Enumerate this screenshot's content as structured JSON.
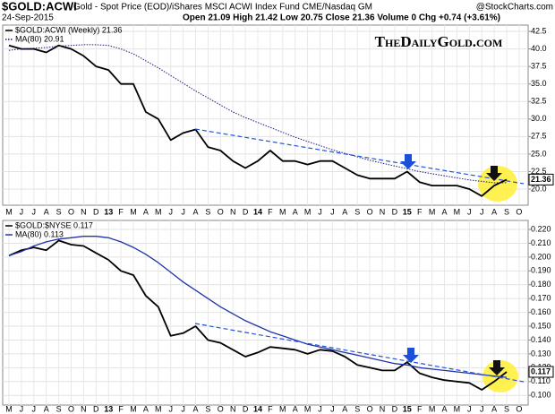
{
  "header": {
    "symbol": "$GOLD:ACWI",
    "description": "Gold - Spot Price (EOD)/iShares MSCI ACWI Index Fund CME/Nasdaq GM",
    "source": "@StockCharts.com",
    "date": "24-Sep-2015",
    "quote": "Open 21.09  High 21.42  Low 20.75  Close 21.36  Volume 0  Chg +0.74 (+3.61%)",
    "watermark": "TheDailyGold.com"
  },
  "chart_data": [
    {
      "type": "line",
      "close_label": "21.36",
      "categories": [
        "M",
        "J",
        "J",
        "A",
        "S",
        "O",
        "N",
        "D",
        "13",
        "F",
        "M",
        "A",
        "M",
        "J",
        "J",
        "A",
        "S",
        "O",
        "N",
        "D",
        "14",
        "F",
        "M",
        "A",
        "M",
        "J",
        "J",
        "A",
        "S",
        "O",
        "N",
        "D",
        "15",
        "F",
        "M",
        "A",
        "M",
        "J",
        "J",
        "A",
        "S",
        "O"
      ],
      "series": [
        {
          "name": "$GOLD:ACWI (Weekly) 21.36",
          "color": "#000000",
          "style": "solid",
          "values": [
            40.5,
            40,
            40,
            39.5,
            40.5,
            40,
            39,
            37.5,
            37,
            35,
            35,
            31,
            30,
            27,
            28,
            28.5,
            26,
            25.5,
            24,
            23,
            24,
            25.5,
            24,
            24,
            23.5,
            24,
            24,
            23,
            22,
            21.5,
            21.5,
            21.5,
            22.5,
            21,
            20.5,
            20.5,
            20.5,
            20,
            19,
            20.5,
            21.36,
            null
          ]
        },
        {
          "name": "MA(80) 20.91",
          "color": "#1a1a80",
          "style": "dotted",
          "values": [
            39.8,
            40,
            40.1,
            40.2,
            40.4,
            40.5,
            40.6,
            40.6,
            40.5,
            40,
            39.3,
            38.3,
            37.3,
            36.2,
            35.1,
            34,
            33,
            32,
            31,
            30.2,
            29.5,
            28.8,
            28.1,
            27.4,
            26.8,
            26.2,
            25.6,
            25.1,
            24.6,
            24.1,
            23.7,
            23.3,
            22.9,
            22.5,
            22.2,
            21.9,
            21.6,
            21.3,
            21.1,
            20.9,
            20.91,
            null
          ]
        }
      ],
      "ylim": [
        17.7,
        43.4
      ],
      "yticks": [
        {
          "value": 20,
          "label": "20.0"
        },
        22.5,
        {
          "value": 25,
          "label": "25.0"
        },
        27.5,
        {
          "value": 30,
          "label": "30.0"
        },
        32.5,
        {
          "value": 35,
          "label": "35.0"
        },
        37.5,
        {
          "value": 40,
          "label": "40.0"
        },
        42.5
      ],
      "grid": true
    },
    {
      "type": "line",
      "close_label": "0.117",
      "categories": [
        "M",
        "J",
        "J",
        "A",
        "S",
        "O",
        "N",
        "D",
        "13",
        "F",
        "M",
        "A",
        "M",
        "J",
        "J",
        "A",
        "S",
        "O",
        "N",
        "D",
        "14",
        "F",
        "M",
        "A",
        "M",
        "J",
        "J",
        "A",
        "S",
        "O",
        "N",
        "D",
        "15",
        "F",
        "M",
        "A",
        "M",
        "J",
        "J",
        "A",
        "S",
        "O"
      ],
      "series": [
        {
          "name": "$GOLD:$NYSE 0.117",
          "color": "#000000",
          "style": "solid",
          "values": [
            0.201,
            0.205,
            0.207,
            0.205,
            0.212,
            0.209,
            0.208,
            0.203,
            0.198,
            0.19,
            0.187,
            0.172,
            0.164,
            0.143,
            0.145,
            0.15,
            0.14,
            0.138,
            0.133,
            0.128,
            0.131,
            0.135,
            0.134,
            0.133,
            0.13,
            0.133,
            0.132,
            0.128,
            0.122,
            0.12,
            0.118,
            0.118,
            0.124,
            0.116,
            0.113,
            0.111,
            0.11,
            0.109,
            0.104,
            0.11,
            0.117,
            null
          ]
        },
        {
          "name": "MA(80) 0.113",
          "color": "#2233aa",
          "style": "solid",
          "values": [
            0.201,
            0.204,
            0.208,
            0.211,
            0.213,
            0.214,
            0.215,
            0.215,
            0.214,
            0.211,
            0.207,
            0.202,
            0.196,
            0.189,
            0.182,
            0.176,
            0.17,
            0.164,
            0.159,
            0.154,
            0.15,
            0.146,
            0.143,
            0.14,
            0.137,
            0.135,
            0.133,
            0.131,
            0.129,
            0.127,
            0.125,
            0.123,
            0.122,
            0.12,
            0.119,
            0.118,
            0.117,
            0.116,
            0.115,
            0.114,
            0.113,
            null
          ]
        }
      ],
      "ylim": [
        0.093,
        0.2265
      ],
      "yticks": [
        {
          "value": 0.1,
          "label": "0.100"
        },
        {
          "value": 0.11,
          "label": "0.110"
        },
        {
          "value": 0.12,
          "label": "0.120"
        },
        {
          "value": 0.13,
          "label": "0.130"
        },
        {
          "value": 0.14,
          "label": "0.140"
        },
        {
          "value": 0.15,
          "label": "0.150"
        },
        {
          "value": 0.16,
          "label": "0.160"
        },
        {
          "value": 0.17,
          "label": "0.170"
        },
        {
          "value": 0.18,
          "label": "0.180"
        },
        {
          "value": 0.19,
          "label": "0.190"
        },
        {
          "value": 0.2,
          "label": "0.200"
        },
        {
          "value": 0.21,
          "label": "0.210"
        },
        {
          "value": 0.22,
          "label": "0.220"
        }
      ],
      "grid": true
    }
  ]
}
